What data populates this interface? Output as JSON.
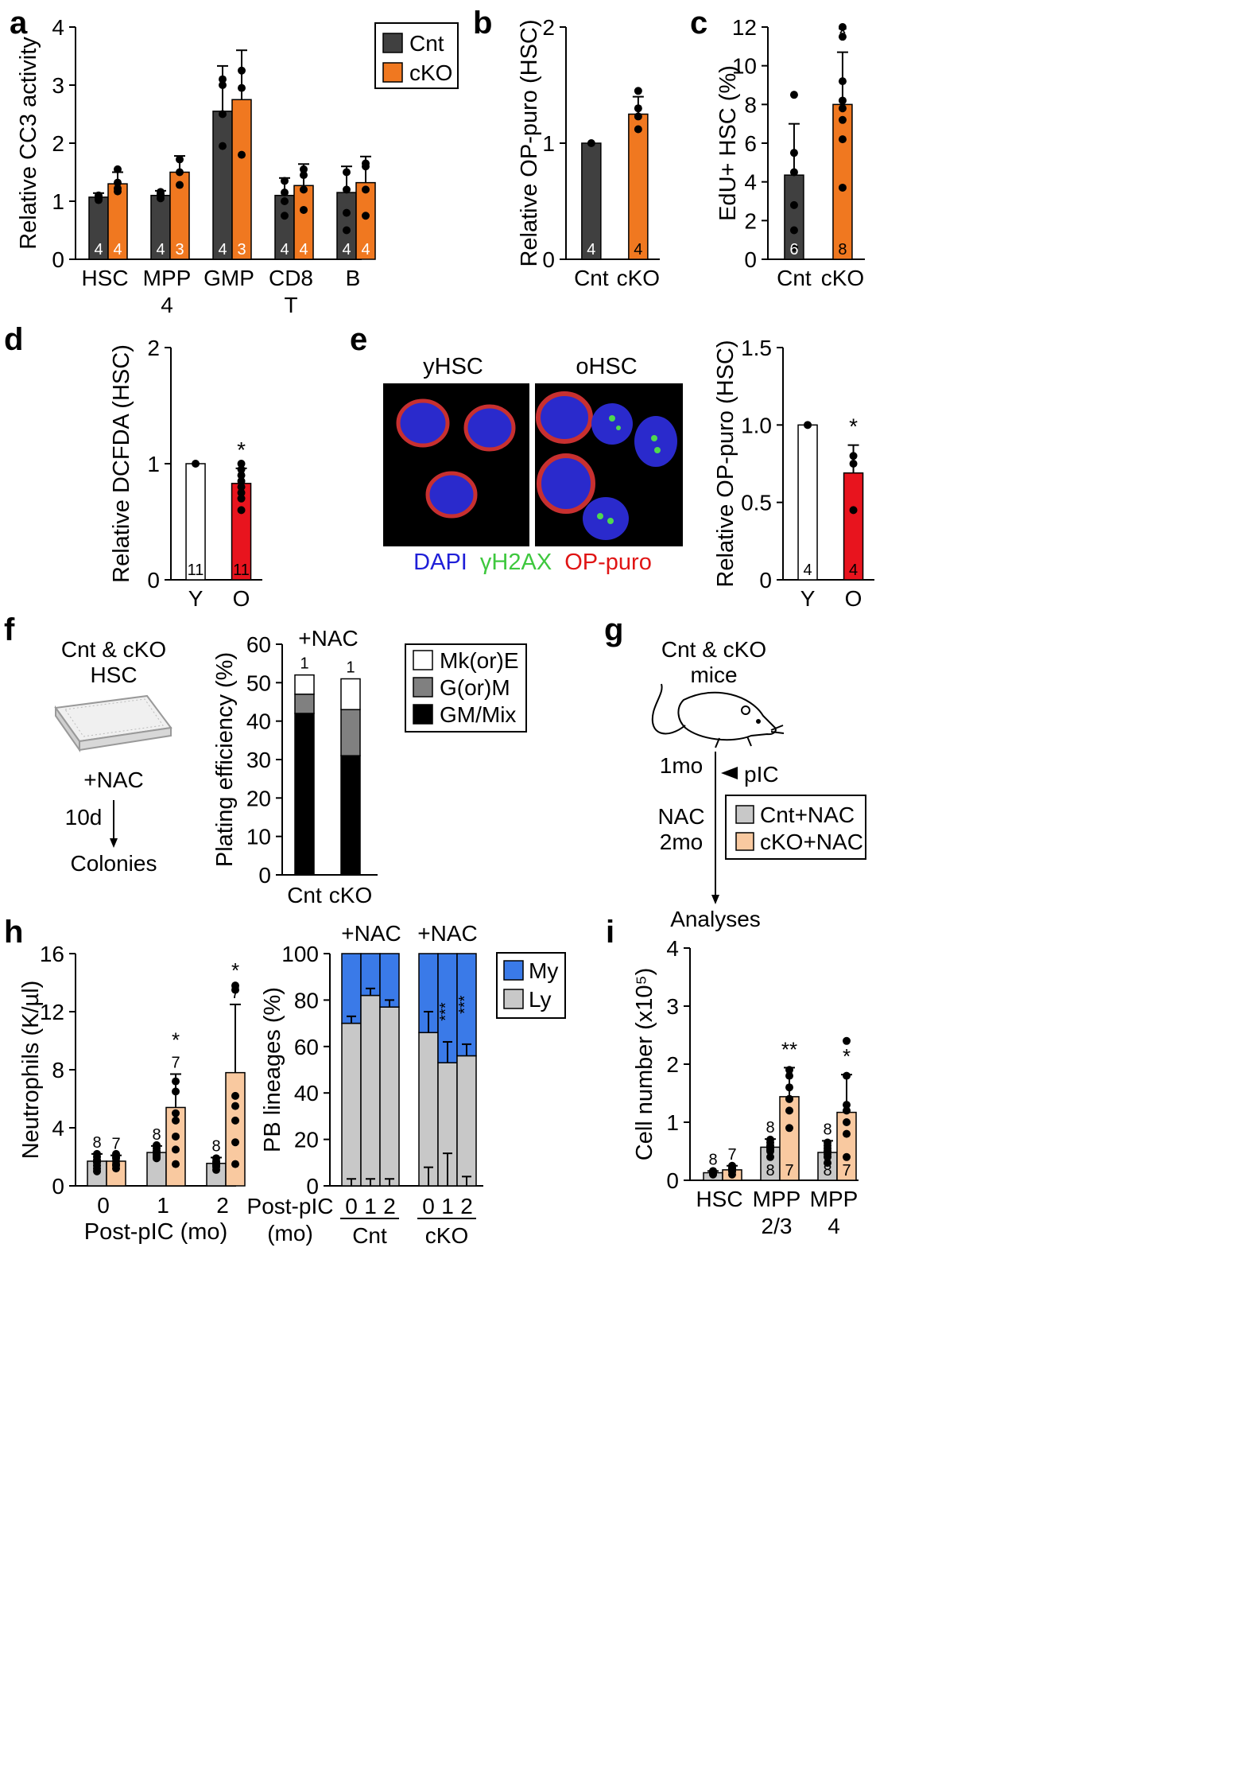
{
  "colors": {
    "cnt": "#404040",
    "cko": "#f07820",
    "cnt_nac": "#c8c8c8",
    "cko_nac": "#f9c9a0",
    "old_red": "#e8141e",
    "my_blue": "#3a7ae8",
    "ly_gray": "#c8c8c8",
    "black": "#000000",
    "dapi": "#1f1fd8",
    "h2ax": "#3ec83e",
    "opp": "#e01414"
  },
  "panels": {
    "a": "a",
    "b": "b",
    "c": "c",
    "d": "d",
    "e": "e",
    "f": "f",
    "g": "g",
    "h": "h",
    "i": "i"
  },
  "chart_data": [
    {
      "id": "a",
      "type": "bar",
      "title": "",
      "ylabel": "Relative CC3 activity",
      "xlabel": "",
      "ylim": [
        0,
        4
      ],
      "yticks": [
        "0",
        "1",
        "2",
        "3",
        "4"
      ],
      "categories": [
        "HSC",
        "MPP\n4",
        "GMP",
        "CD8\nT",
        "B"
      ],
      "series": [
        {
          "name": "Cnt",
          "values": [
            1.07,
            1.1,
            2.55,
            1.1,
            1.15
          ],
          "errors": [
            0.07,
            0.08,
            0.78,
            0.3,
            0.45
          ],
          "n": [
            "4",
            "4",
            "4",
            "4",
            "4"
          ]
        },
        {
          "name": "cKO",
          "values": [
            1.3,
            1.5,
            2.75,
            1.27,
            1.32
          ],
          "errors": [
            0.2,
            0.28,
            0.85,
            0.37,
            0.45
          ],
          "n": [
            "4",
            "3",
            "3",
            "4",
            "4"
          ]
        }
      ],
      "legend": [
        "Cnt",
        "cKO"
      ]
    },
    {
      "id": "b",
      "type": "bar",
      "ylabel": "Relative OP-puro (HSC)",
      "ylim": [
        0,
        2
      ],
      "yticks": [
        "0",
        "1",
        "2"
      ],
      "categories": [
        "Cnt",
        "cKO"
      ],
      "values": [
        1.0,
        1.25
      ],
      "errors": [
        0,
        0.15
      ],
      "n": [
        "4",
        "4"
      ]
    },
    {
      "id": "c",
      "type": "bar",
      "ylabel": "EdU+ HSC (%)",
      "ylim": [
        0,
        12
      ],
      "yticks": [
        "0",
        "2",
        "4",
        "6",
        "8",
        "10",
        "12"
      ],
      "categories": [
        "Cnt",
        "cKO"
      ],
      "values": [
        4.35,
        8.0
      ],
      "errors": [
        2.65,
        2.7
      ],
      "n": [
        "6",
        "8"
      ],
      "sig": [
        "",
        "*"
      ]
    },
    {
      "id": "d",
      "type": "bar",
      "ylabel": "Relative DCFDA (HSC)",
      "ylim": [
        0,
        2
      ],
      "yticks": [
        "0",
        "1",
        "2"
      ],
      "categories": [
        "Y",
        "O"
      ],
      "values": [
        1.0,
        0.83
      ],
      "errors": [
        0,
        0.13
      ],
      "n": [
        "11",
        "11"
      ],
      "sig": [
        "",
        "*"
      ]
    },
    {
      "id": "e",
      "type": "bar",
      "ylabel": "Relative OP-puro (HSC)",
      "ylim": [
        0,
        1.5
      ],
      "yticks": [
        "0",
        "0.5",
        "1.0",
        "1.5"
      ],
      "categories": [
        "Y",
        "O"
      ],
      "values": [
        1.0,
        0.69
      ],
      "errors": [
        0,
        0.18
      ],
      "n": [
        "4",
        "4"
      ],
      "sig": [
        "",
        "*"
      ]
    },
    {
      "id": "f",
      "type": "bar",
      "ylabel": "Plating efficiency (%)",
      "ylim": [
        0,
        60
      ],
      "yticks": [
        "0",
        "10",
        "20",
        "30",
        "40",
        "50",
        "60"
      ],
      "categories": [
        "Cnt",
        "cKO"
      ],
      "series": [
        {
          "name": "GM/Mix",
          "values": [
            42,
            31
          ]
        },
        {
          "name": "G(or)M",
          "values": [
            5,
            12
          ]
        },
        {
          "name": "Mk(or)E",
          "values": [
            5,
            8
          ]
        }
      ],
      "n": [
        "1",
        "1"
      ],
      "annotation": "+NAC",
      "legend": [
        "Mk(or)E",
        "G(or)M",
        "GM/Mix"
      ]
    },
    {
      "id": "h1",
      "type": "bar",
      "ylabel": "Neutrophils (K/µl)",
      "xlabel": "Post-pIC (mo)",
      "ylim": [
        0,
        16
      ],
      "yticks": [
        "0",
        "4",
        "8",
        "12",
        "16"
      ],
      "categories": [
        "0",
        "1",
        "2"
      ],
      "series": [
        {
          "name": "Cnt+NAC",
          "values": [
            1.7,
            2.3,
            1.55
          ],
          "errors": [
            0.5,
            0.45,
            0.4
          ],
          "n": [
            "8",
            "8",
            "8"
          ]
        },
        {
          "name": "cKO+NAC",
          "values": [
            1.7,
            5.4,
            7.8
          ],
          "errors": [
            0.4,
            2.3,
            4.7
          ],
          "n": [
            "7",
            "7",
            "7"
          ],
          "sig": [
            "",
            "*",
            "*"
          ]
        }
      ]
    },
    {
      "id": "h2",
      "type": "bar",
      "ylabel": "PB lineages (%)",
      "xlabel": "Post-pIC\n(mo)",
      "ylim": [
        0,
        100
      ],
      "yticks": [
        "0",
        "20",
        "40",
        "60",
        "80",
        "100"
      ],
      "categories": [
        "0",
        "1",
        "2",
        "0",
        "1",
        "2"
      ],
      "groups": [
        "Cnt",
        "cKO"
      ],
      "annotation": "+NAC",
      "series": [
        {
          "name": "Ly",
          "values": [
            70,
            82,
            77,
            66,
            53,
            56
          ]
        },
        {
          "name": "My",
          "values": [
            30,
            18,
            23,
            34,
            47,
            44
          ]
        }
      ],
      "sig": [
        "",
        "",
        "",
        "",
        "***",
        "***"
      ],
      "legend": [
        "My",
        "Ly"
      ]
    },
    {
      "id": "i",
      "type": "bar",
      "ylabel": "Cell number (x10⁵)",
      "ylim": [
        0,
        4
      ],
      "yticks": [
        "0",
        "1",
        "2",
        "3",
        "4"
      ],
      "categories": [
        "HSC",
        "MPP\n2/3",
        "MPP\n4"
      ],
      "series": [
        {
          "name": "Cnt+NAC",
          "values": [
            0.13,
            0.57,
            0.48
          ],
          "errors": [
            0.03,
            0.14,
            0.2
          ],
          "n": [
            "8",
            "8",
            "8"
          ]
        },
        {
          "name": "cKO+NAC",
          "values": [
            0.18,
            1.44,
            1.17
          ],
          "errors": [
            0.07,
            0.5,
            0.65
          ],
          "n": [
            "7",
            "7",
            "7"
          ],
          "sig": [
            "",
            "**",
            "*"
          ]
        }
      ]
    }
  ],
  "texts": {
    "e_label_young": "yHSC",
    "e_label_old": "oHSC",
    "e_stain_dapi": "DAPI",
    "e_stain_h2ax": "γH2AX",
    "e_stain_opp": "OP-puro",
    "f_scheme_title1": "Cnt & cKO",
    "f_scheme_title2": "HSC",
    "f_scheme_nac": "+NAC",
    "f_scheme_days": "10d",
    "f_scheme_colonies": "Colonies",
    "g_title1": "Cnt & cKO",
    "g_title2": "mice",
    "g_1mo": "1mo",
    "g_pic": "pIC",
    "g_nac": "NAC",
    "g_2mo": "2mo",
    "g_legend_cnt": "Cnt+NAC",
    "g_legend_cko": "cKO+NAC",
    "g_analyses": "Analyses",
    "h_nac1": "+NAC",
    "h_nac2": "+NAC"
  }
}
